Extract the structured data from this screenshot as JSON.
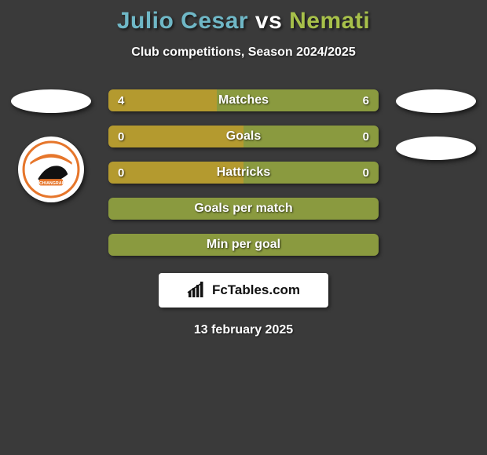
{
  "title": {
    "player1": "Julio Cesar",
    "vs": "vs",
    "player2": "Nemati",
    "color1": "#6fb7c6",
    "color_vs": "#ffffff",
    "color2": "#a7c04a"
  },
  "subtitle": "Club competitions, Season 2024/2025",
  "colors": {
    "p1": "#b49a2f",
    "p2": "#8a9a3f",
    "neutral": "#8a9a3f",
    "bg": "#3a3a3a"
  },
  "bars": [
    {
      "label": "Matches",
      "left": "4",
      "right": "6",
      "left_pct": 40,
      "right_pct": 60,
      "mode": "split"
    },
    {
      "label": "Goals",
      "left": "0",
      "right": "0",
      "left_pct": 50,
      "right_pct": 50,
      "mode": "split"
    },
    {
      "label": "Hattricks",
      "left": "0",
      "right": "0",
      "left_pct": 50,
      "right_pct": 50,
      "mode": "split"
    },
    {
      "label": "Goals per match",
      "left": "",
      "right": "",
      "mode": "full"
    },
    {
      "label": "Min per goal",
      "left": "",
      "right": "",
      "mode": "full"
    }
  ],
  "logo": {
    "text": "FcTables.com"
  },
  "date": "13 february 2025"
}
